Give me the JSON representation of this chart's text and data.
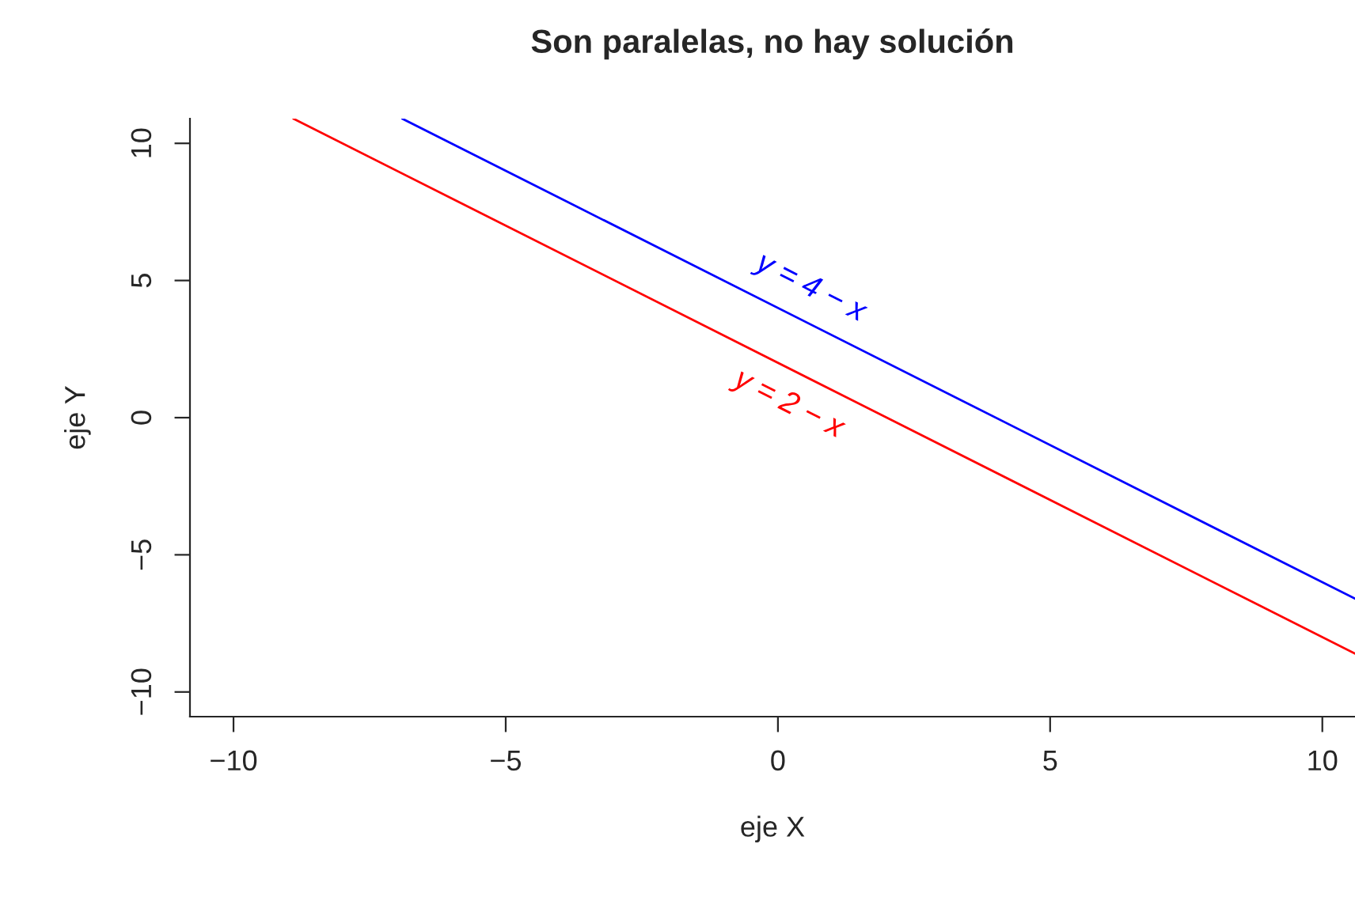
{
  "chart_data": {
    "type": "line",
    "title": "Son paralelas, no hay solución",
    "xlabel": "eje X",
    "ylabel": "eje Y",
    "xlim": [
      -10.8,
      10.6
    ],
    "ylim": [
      -10.9,
      10.9
    ],
    "xticks": [
      -10,
      -5,
      0,
      5,
      10
    ],
    "yticks": [
      -10,
      -5,
      0,
      5,
      10
    ],
    "grid": false,
    "legend": false,
    "series": [
      {
        "color": "#0000ff",
        "x": [
          -6.9,
          10.6
        ],
        "values": [
          10.9,
          -6.6
        ]
      },
      {
        "color": "#ff0000",
        "x": [
          -8.9,
          10.6
        ],
        "values": [
          10.9,
          -8.6
        ]
      }
    ],
    "annotations": [
      {
        "text": "y = 4 − x",
        "x": 0.4,
        "y": 3.6
      },
      {
        "text": "y = 2 − x",
        "x": 0.4,
        "y": 1.6
      }
    ]
  }
}
